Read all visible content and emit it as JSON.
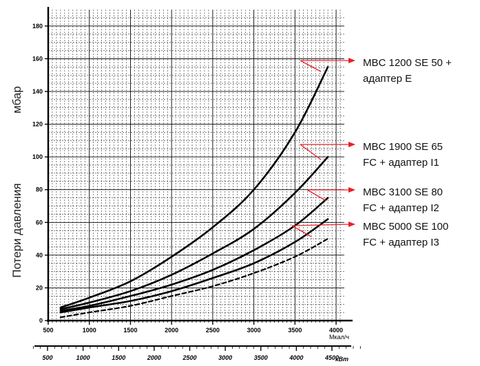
{
  "chart_data": {
    "type": "line",
    "title": "",
    "ylabel_main": "Потери давления",
    "ylabel_unit": "мбар",
    "xlabel_unit": "Мкал/ч",
    "x2label_unit": "кВт",
    "xlim": [
      500,
      4100
    ],
    "ylim": [
      0,
      190
    ],
    "x_ticks": [
      "500",
      "1000",
      "1500",
      "2000",
      "2500",
      "3000",
      "3500",
      "4000"
    ],
    "x_tick_values": [
      500,
      1000,
      1500,
      2000,
      2500,
      3000,
      3500,
      4000
    ],
    "y_ticks": [
      "0",
      "20",
      "40",
      "60",
      "80",
      "100",
      "120",
      "140",
      "160",
      "180"
    ],
    "y_tick_values": [
      0,
      20,
      40,
      60,
      80,
      100,
      120,
      140,
      160,
      180
    ],
    "x2_ticks": [
      "500",
      "1000",
      "1500",
      "2000",
      "2500",
      "3000",
      "3500",
      "4000",
      "4500"
    ],
    "x2_tick_values": [
      500,
      1000,
      1500,
      2000,
      2500,
      3000,
      3500,
      4000,
      4500
    ],
    "grid": true,
    "series": [
      {
        "name": "MBC 1200 SE 50 + адаптер E",
        "style": "solid",
        "x": [
          650,
          1000,
          1500,
          2000,
          2500,
          3000,
          3500,
          3900
        ],
        "y": [
          8,
          14,
          24,
          39,
          57,
          80,
          115,
          155
        ]
      },
      {
        "name": "MBC 1900 SE 65 FC + адаптер I1",
        "style": "solid",
        "x": [
          650,
          1000,
          1500,
          2000,
          2500,
          3000,
          3500,
          3900
        ],
        "y": [
          7,
          11,
          18,
          28,
          41,
          56,
          78,
          100
        ]
      },
      {
        "name": "MBC 3100 SE 80 FC + адаптер I2",
        "style": "solid",
        "x": [
          650,
          1000,
          1500,
          2000,
          2500,
          3000,
          3500,
          3900
        ],
        "y": [
          6,
          9,
          15,
          22,
          31,
          43,
          58,
          75
        ]
      },
      {
        "name": "MBC 5000 SE 100 FC + адаптер I3",
        "style": "solid",
        "x": [
          650,
          1000,
          1500,
          2000,
          2500,
          3000,
          3500,
          3900
        ],
        "y": [
          5,
          8,
          12,
          18,
          26,
          35,
          48,
          62
        ]
      },
      {
        "name": "",
        "style": "dashed",
        "x": [
          650,
          1000,
          1500,
          2000,
          2500,
          3000,
          3500,
          3900
        ],
        "y": [
          2,
          5,
          9,
          15,
          21,
          29,
          39,
          50
        ]
      }
    ],
    "legend": [
      {
        "line1": "MBC 1200 SE 50  +",
        "line2": "адаптер E",
        "color": "#e8202a"
      },
      {
        "line1": "MBC 1900 SE 65",
        "line2": "FC + адаптер I1",
        "color": "#e8202a"
      },
      {
        "line1": "MBC 3100 SE 80",
        "line2": "FC + адаптер I2",
        "color": "#e8202a"
      },
      {
        "line1": "MBC 5000 SE 100",
        "line2": "FC + адаптер I3",
        "color": "#e8202a"
      }
    ]
  }
}
